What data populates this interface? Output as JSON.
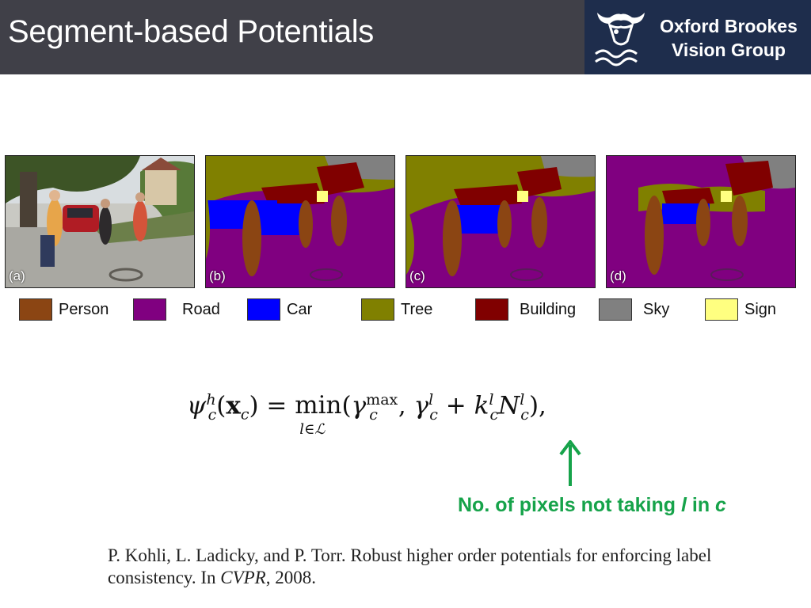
{
  "header": {
    "title": "Segment-based Potentials",
    "logo_line1": "Oxford Brookes",
    "logo_line2": "Vision Group"
  },
  "figure": {
    "panels": [
      {
        "label": "(a)",
        "type": "photo"
      },
      {
        "label": "(b)",
        "type": "segmentation"
      },
      {
        "label": "(c)",
        "type": "segmentation"
      },
      {
        "label": "(d)",
        "type": "segmentation"
      }
    ],
    "legend": [
      {
        "label": "Person",
        "color": "#8b4513"
      },
      {
        "label": "Road",
        "color": "#800080"
      },
      {
        "label": "Car",
        "color": "#0000ff"
      },
      {
        "label": "Tree",
        "color": "#808000"
      },
      {
        "label": "Building",
        "color": "#800000"
      },
      {
        "label": "Sky",
        "color": "#808080"
      },
      {
        "label": "Sign",
        "color": "#ffff80"
      }
    ]
  },
  "equation": {
    "latex": "\\psi_c^h(\\mathbf{x}_c) = \\min_{l \\in \\mathcal{L}}(\\gamma_c^{\\max}, \\gamma_c^l + k_c^l N_c^l),"
  },
  "annotation": {
    "text_before": "No. of pixels not taking ",
    "var_l": "l",
    "text_mid": " in ",
    "var_c": "c",
    "color": "#16a34a"
  },
  "citation": {
    "text_before": "P. Kohli, L. Ladicky, and P. Torr.  Robust higher order potentials for enforcing label consistency.  In ",
    "venue": "CVPR",
    "text_after": ", 2008."
  }
}
